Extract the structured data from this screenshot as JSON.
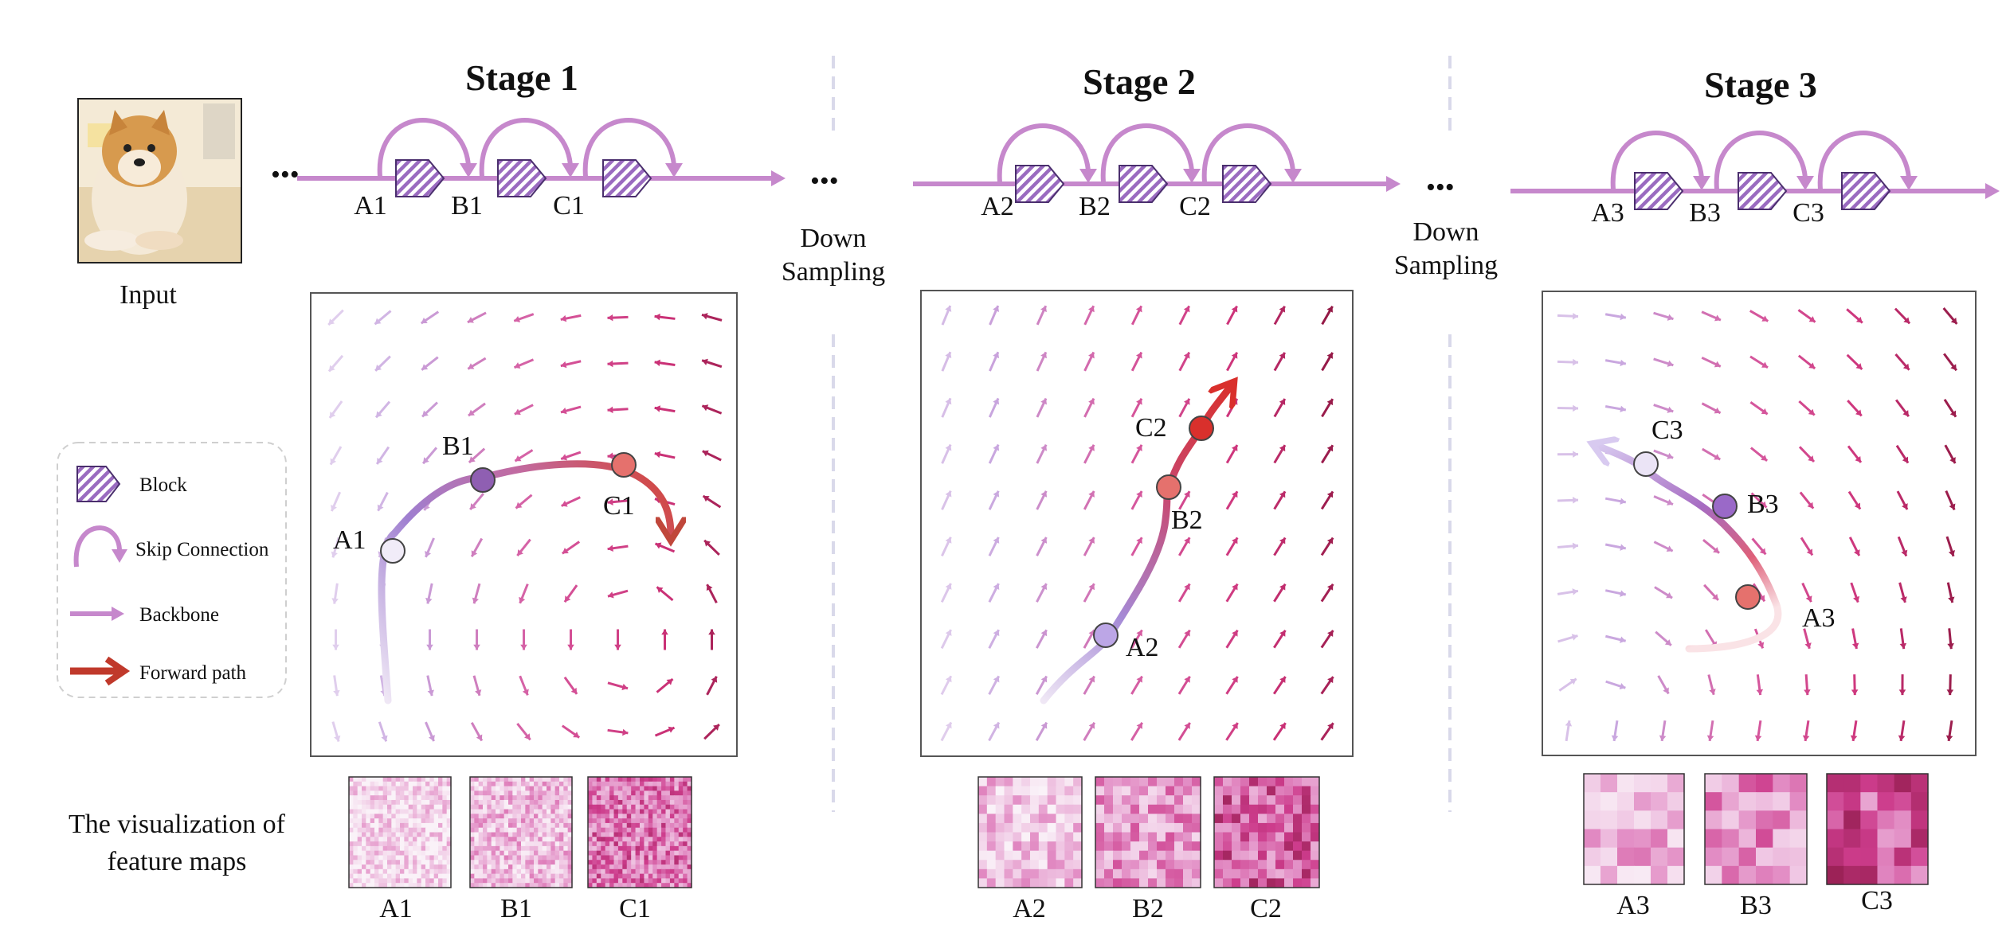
{
  "input": {
    "caption": "Input"
  },
  "ellipsis": "•••",
  "down_sampling": [
    "Down",
    "Sampling"
  ],
  "stages": [
    {
      "title": "Stage 1",
      "nodes": [
        "A1",
        "B1",
        "C1"
      ],
      "panel_points": [
        "A1",
        "B1",
        "C1"
      ],
      "maps": [
        "A1",
        "B1",
        "C1"
      ]
    },
    {
      "title": "Stage 2",
      "nodes": [
        "A2",
        "B2",
        "C2"
      ],
      "panel_points": [
        "A2",
        "B2",
        "C2"
      ],
      "maps": [
        "A2",
        "B2",
        "C2"
      ]
    },
    {
      "title": "Stage 3",
      "nodes": [
        "A3",
        "B3",
        "C3"
      ],
      "panel_points": [
        "A3",
        "B3",
        "C3"
      ],
      "maps": [
        "A3",
        "B3",
        "C3"
      ]
    }
  ],
  "legend": {
    "block": "Block",
    "skip": "Skip Connection",
    "backbone": "Backbone",
    "forward": "Forward path"
  },
  "feature_caption": [
    "The visualization of",
    "feature maps"
  ],
  "colors": {
    "purple": "#c688cc",
    "purple_dark": "#9b59b6",
    "forward_red": "#c0392b",
    "magenta": "#d63a7e",
    "dark_red": "#7a0f30"
  }
}
